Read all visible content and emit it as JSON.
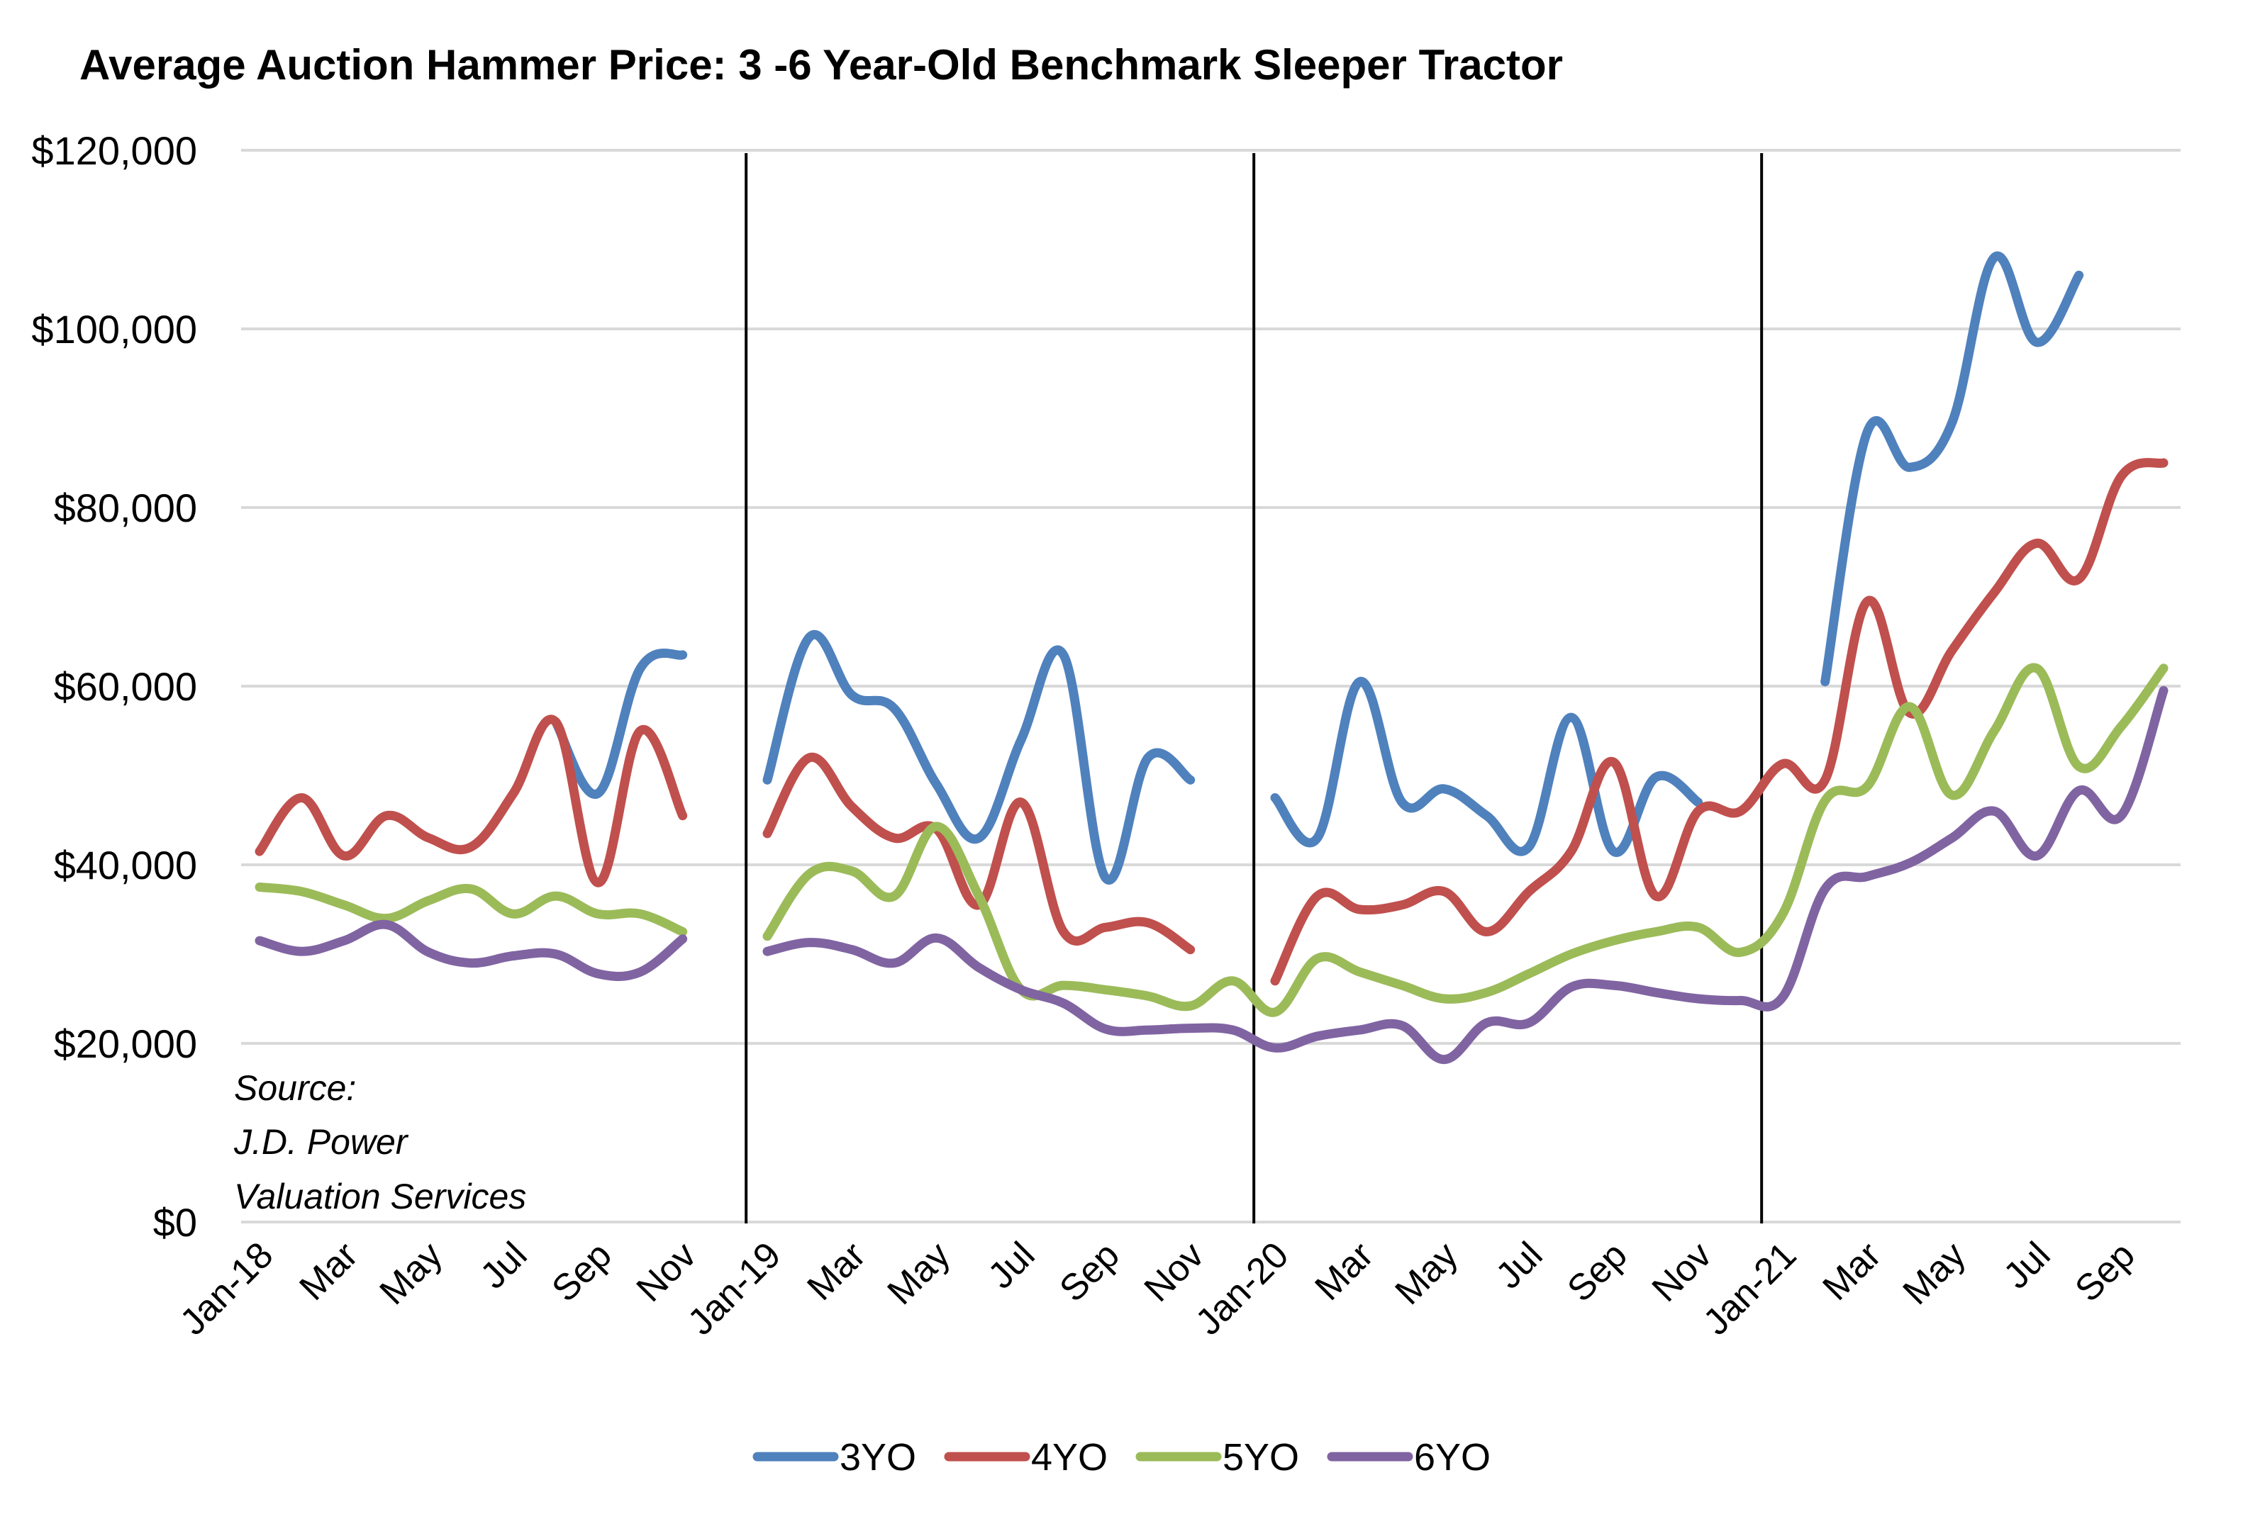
{
  "chart_data": {
    "type": "line",
    "title": "Average Auction Hammer Price: 3 -6 Year-Old Benchmark Sleeper Tractor",
    "xlabel": "",
    "ylabel": "",
    "ylim": [
      0,
      120000
    ],
    "y_ticks": [
      0,
      20000,
      40000,
      60000,
      80000,
      100000,
      120000
    ],
    "y_tick_labels": [
      "$0",
      "$20,000",
      "$40,000",
      "$60,000",
      "$80,000",
      "$100,000",
      "$120,000"
    ],
    "grid": "horizontal",
    "legend_position": "bottom",
    "year_separators_after_month_index": [
      11,
      23,
      35
    ],
    "x": [
      "Jan-18",
      "Feb-18",
      "Mar-18",
      "Apr-18",
      "May-18",
      "Jun-18",
      "Jul-18",
      "Aug-18",
      "Sep-18",
      "Oct-18",
      "Nov-18",
      "Dec-18",
      "Jan-19",
      "Feb-19",
      "Mar-19",
      "Apr-19",
      "May-19",
      "Jun-19",
      "Jul-19",
      "Aug-19",
      "Sep-19",
      "Oct-19",
      "Nov-19",
      "Dec-19",
      "Jan-20",
      "Feb-20",
      "Mar-20",
      "Apr-20",
      "May-20",
      "Jun-20",
      "Jul-20",
      "Aug-20",
      "Sep-20",
      "Oct-20",
      "Nov-20",
      "Dec-20",
      "Jan-21",
      "Feb-21",
      "Mar-21",
      "Apr-21",
      "May-21",
      "Jun-21",
      "Jul-21",
      "Aug-21",
      "Sep-21",
      "Oct-21"
    ],
    "x_tick_labels": [
      "Jan-18",
      "Mar",
      "May",
      "Jul",
      "Sep",
      "Nov",
      "Jan-19",
      "Mar",
      "May",
      "Jul",
      "Sep",
      "Nov",
      "Jan-20",
      "Mar",
      "May",
      "Jul",
      "Sep",
      "Nov",
      "Jan-21",
      "Mar",
      "May",
      "Jul",
      "Sep"
    ],
    "x_tick_indices": [
      0,
      2,
      4,
      6,
      8,
      10,
      12,
      14,
      16,
      18,
      20,
      22,
      24,
      26,
      28,
      30,
      32,
      34,
      36,
      38,
      40,
      42,
      44
    ],
    "series": [
      {
        "name": "3YO",
        "color": "#4F81BD",
        "values": [
          null,
          null,
          null,
          null,
          null,
          null,
          null,
          56000,
          48000,
          62000,
          63500,
          null,
          49500,
          65500,
          59000,
          57500,
          49000,
          43000,
          54000,
          63500,
          38500,
          52000,
          49500,
          null,
          47500,
          43000,
          60500,
          47000,
          48500,
          45500,
          42000,
          56500,
          41500,
          49800,
          47000,
          null,
          null,
          60500,
          88500,
          84500,
          89500,
          108000,
          98500,
          106000,
          null,
          null
        ]
      },
      {
        "name": "4YO",
        "color": "#C0504D",
        "values": [
          41500,
          47500,
          41000,
          45500,
          43000,
          42000,
          48000,
          56000,
          38000,
          55000,
          45500,
          null,
          43500,
          52000,
          46500,
          43000,
          44000,
          35500,
          47000,
          32500,
          33000,
          33500,
          30500,
          null,
          27000,
          36500,
          35000,
          35500,
          37000,
          32500,
          37000,
          41500,
          51500,
          36500,
          46000,
          46000,
          51300,
          49500,
          69500,
          57000,
          64000,
          70500,
          76000,
          72000,
          83500,
          85000
        ]
      },
      {
        "name": "5YO",
        "color": "#9BBB59",
        "values": [
          37500,
          37000,
          35500,
          34000,
          36000,
          37300,
          34500,
          36500,
          34500,
          34500,
          32500,
          null,
          32000,
          39000,
          39300,
          36500,
          44300,
          36500,
          26000,
          26500,
          26000,
          25300,
          24200,
          27000,
          23500,
          29500,
          28000,
          26500,
          25000,
          25700,
          27800,
          30000,
          31500,
          32500,
          33000,
          30200,
          34500,
          47200,
          48800,
          57700,
          47800,
          55000,
          62000,
          51000,
          55500,
          62000
        ]
      },
      {
        "name": "6YO",
        "color": "#8064A2",
        "values": [
          31500,
          30300,
          31500,
          33300,
          30200,
          29000,
          29800,
          30000,
          27800,
          28000,
          31700,
          null,
          30300,
          31300,
          30500,
          29000,
          31800,
          28500,
          26000,
          24500,
          21600,
          21500,
          21700,
          21500,
          19500,
          20800,
          21500,
          22000,
          18200,
          22300,
          22300,
          26300,
          26500,
          25700,
          25000,
          24800,
          25200,
          37300,
          38700,
          40200,
          43000,
          46000,
          41000,
          48300,
          45500,
          59500
        ]
      }
    ],
    "annotation_lines": [
      "Source:",
      "J.D. Power",
      "Valuation Services"
    ]
  }
}
